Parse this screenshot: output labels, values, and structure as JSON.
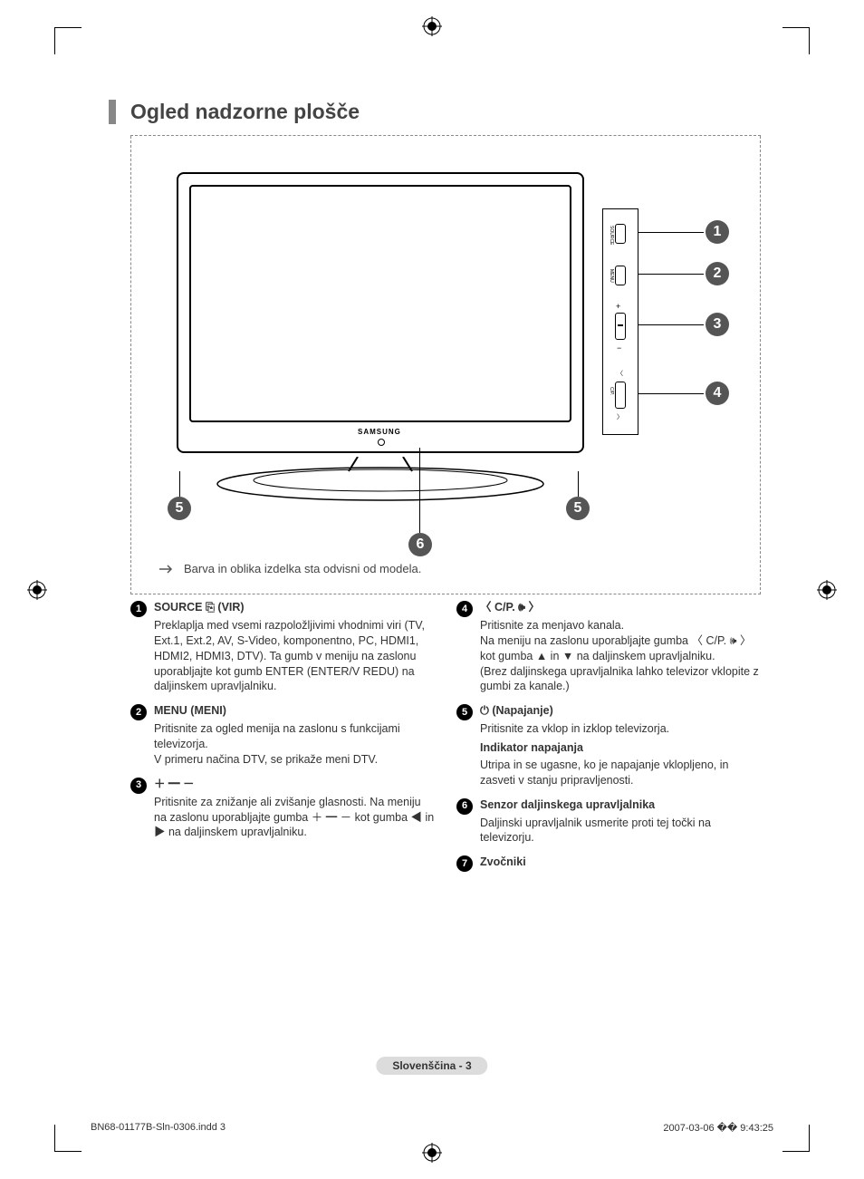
{
  "title": "Ogled nadzorne plošče",
  "figure": {
    "tv_logo": "SAMSUNG",
    "side_labels": {
      "source": "SOURCE",
      "menu": "MENU",
      "cp": "C/P."
    },
    "callouts": [
      "1",
      "2",
      "3",
      "4",
      "5",
      "5",
      "6"
    ],
    "note": "Barva in oblika izdelka sta odvisni od modela."
  },
  "items_left": [
    {
      "num": "1",
      "head": "SOURCE ⎘ (VIR)",
      "body": "Preklaplja med vsemi razpoložljivimi vhodnimi viri (TV, Ext.1, Ext.2, AV, S-Video, komponentno, PC, HDMI1, HDMI2, HDMI3, DTV). Ta gumb v meniju na zaslonu uporabljajte kot gumb ENTER (ENTER/V REDU) na daljinskem upravljalniku."
    },
    {
      "num": "2",
      "head": "MENU (MENI)",
      "body": "Pritisnite za ogled menija na zaslonu s funkcijami televizorja.\nV primeru načina DTV, se prikaže meni DTV."
    },
    {
      "num": "3",
      "head": "＋ ━ －",
      "body": "Pritisnite za znižanje ali zvišanje glasnosti. Na meniju na zaslonu uporabljajte gumba ＋ ━ － kot gumba ◀ in ▶ na daljinskem upravljalniku."
    }
  ],
  "items_right": [
    {
      "num": "4",
      "head": "〈 C/P. 🕪 〉",
      "body": "Pritisnite za menjavo kanala.\nNa meniju na zaslonu uporabljajte gumba 〈 C/P. 🕪 〉 kot gumba ▲ in ▼ na daljinskem upravljalniku.\n(Brez daljinskega upravljalnika lahko televizor vklopite z gumbi za kanale.)"
    },
    {
      "num": "5",
      "head": "⏻ (Napajanje)",
      "body": "Pritisnite za vklop in izklop televizorja.",
      "subhead": "Indikator napajanja",
      "body2": "Utripa in se ugasne, ko je napajanje vklopljeno, in zasveti v stanju pripravljenosti."
    },
    {
      "num": "6",
      "head": "Senzor daljinskega upravljalnika",
      "body": "Daljinski upravljalnik usmerite proti tej točki na televizorju."
    },
    {
      "num": "7",
      "head": "Zvočniki",
      "body": ""
    }
  ],
  "page_badge": "Slovenščina - 3",
  "footer": {
    "left": "BN68-01177B-Sln-0306.indd   3",
    "right": "2007-03-06   �� 9:43:25"
  },
  "colors": {
    "accent_bar": "#888888",
    "callout_bg": "#555555",
    "num_bg": "#000000",
    "badge_bg": "#dcdcdc"
  }
}
